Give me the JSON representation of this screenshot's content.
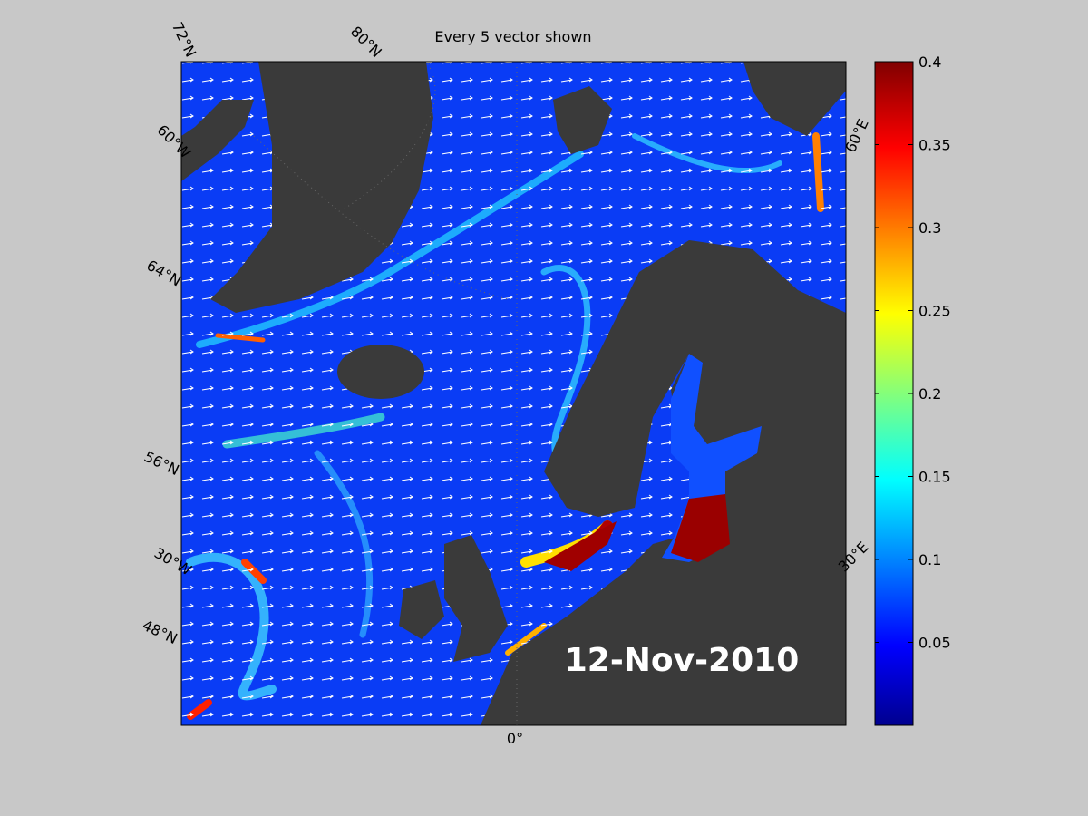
{
  "map": {
    "title": "Every 5 vector shown",
    "date": "12-Nov-2010",
    "graticule_labels": [
      "72°N",
      "80°N",
      "60°W",
      "64°N",
      "56°N",
      "30°W",
      "48°N",
      "0°",
      "30°E",
      "60°E"
    ]
  },
  "colorbar": {
    "lim": [
      0,
      0.4
    ],
    "ticks": [
      0.05,
      0.1,
      0.15,
      0.2,
      0.25,
      0.3,
      0.35,
      0.4
    ]
  }
}
